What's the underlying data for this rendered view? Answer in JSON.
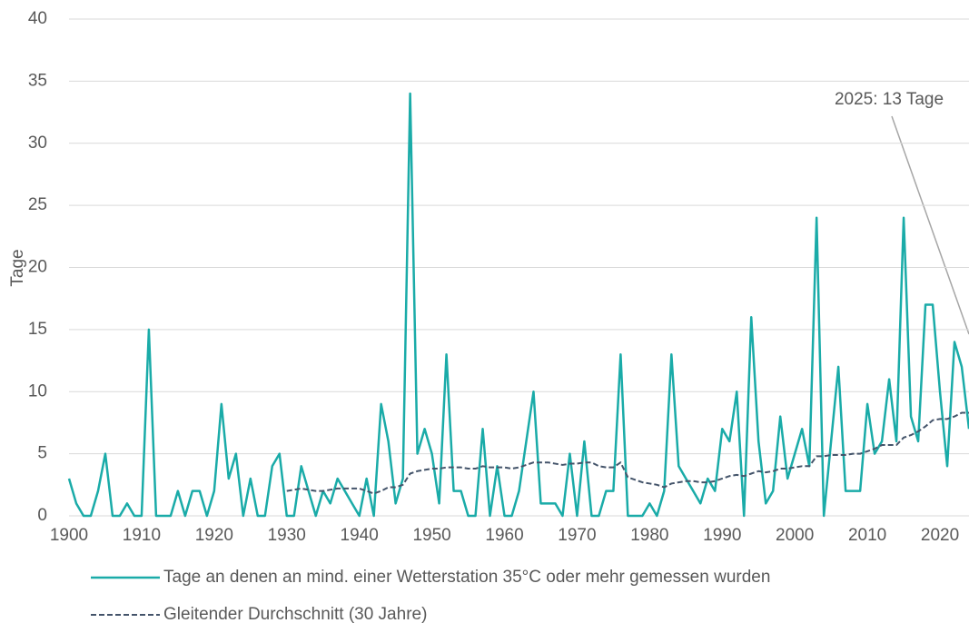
{
  "chart_data": {
    "type": "line",
    "y_label": "Tage",
    "annotation": "2025: 13 Tage",
    "x": [
      1900,
      1901,
      1902,
      1903,
      1904,
      1905,
      1906,
      1907,
      1908,
      1909,
      1910,
      1911,
      1912,
      1913,
      1914,
      1915,
      1916,
      1917,
      1918,
      1919,
      1920,
      1921,
      1922,
      1923,
      1924,
      1925,
      1926,
      1927,
      1928,
      1929,
      1930,
      1931,
      1932,
      1933,
      1934,
      1935,
      1936,
      1937,
      1938,
      1939,
      1940,
      1941,
      1942,
      1943,
      1944,
      1945,
      1946,
      1947,
      1948,
      1949,
      1950,
      1951,
      1952,
      1953,
      1954,
      1955,
      1956,
      1957,
      1958,
      1959,
      1960,
      1961,
      1962,
      1963,
      1964,
      1965,
      1966,
      1967,
      1968,
      1969,
      1970,
      1971,
      1972,
      1973,
      1974,
      1975,
      1976,
      1977,
      1978,
      1979,
      1980,
      1981,
      1982,
      1983,
      1984,
      1985,
      1986,
      1987,
      1988,
      1989,
      1990,
      1991,
      1992,
      1993,
      1994,
      1995,
      1996,
      1997,
      1998,
      1999,
      2000,
      2001,
      2002,
      2003,
      2004,
      2005,
      2006,
      2007,
      2008,
      2009,
      2010,
      2011,
      2012,
      2013,
      2014,
      2015,
      2016,
      2017,
      2018,
      2019,
      2020,
      2021,
      2022,
      2023,
      2024
    ],
    "series": [
      {
        "name": "Tage an denen an mind. einer Wetterstation 35°C oder mehr gemessen wurden",
        "color": "#1aaba8",
        "dash": false,
        "values": [
          3,
          1,
          0,
          0,
          2,
          5,
          0,
          0,
          1,
          0,
          0,
          15,
          0,
          0,
          0,
          2,
          0,
          2,
          2,
          0,
          2,
          9,
          3,
          5,
          0,
          3,
          0,
          0,
          4,
          5,
          0,
          0,
          4,
          2,
          0,
          2,
          1,
          3,
          2,
          1,
          0,
          3,
          0,
          9,
          6,
          1,
          3,
          34,
          5,
          7,
          5,
          1,
          13,
          2,
          2,
          0,
          0,
          7,
          0,
          4,
          0,
          0,
          2,
          6,
          10,
          1,
          1,
          1,
          0,
          5,
          0,
          6,
          0,
          0,
          2,
          2,
          13,
          0,
          0,
          0,
          1,
          0,
          2,
          13,
          4,
          3,
          2,
          1,
          3,
          2,
          7,
          6,
          10,
          0,
          16,
          6,
          1,
          2,
          8,
          3,
          5,
          7,
          4,
          24,
          0,
          6,
          12,
          2,
          2,
          2,
          9,
          5,
          6,
          11,
          6,
          24,
          8,
          6,
          17,
          17,
          10,
          4,
          14,
          12,
          7
        ]
      },
      {
        "name": "Gleitender Durchschnitt (30 Jahre)",
        "color": "#44546a",
        "dash": true,
        "values": [
          null,
          null,
          null,
          null,
          null,
          null,
          null,
          null,
          null,
          null,
          null,
          null,
          null,
          null,
          null,
          null,
          null,
          null,
          null,
          null,
          null,
          null,
          null,
          null,
          null,
          null,
          null,
          null,
          null,
          null,
          2.0,
          2.1,
          2.2,
          2.1,
          2.0,
          2.0,
          2.1,
          2.2,
          2.2,
          2.2,
          2.2,
          2.0,
          1.8,
          2.0,
          2.3,
          2.3,
          2.5,
          3.4,
          3.6,
          3.7,
          3.8,
          3.8,
          3.9,
          3.9,
          3.9,
          3.8,
          3.8,
          4.0,
          3.9,
          3.9,
          3.9,
          3.8,
          3.9,
          4.1,
          4.3,
          4.3,
          4.3,
          4.2,
          4.1,
          4.2,
          4.2,
          4.3,
          4.3,
          4.0,
          3.9,
          3.9,
          4.3,
          3.1,
          2.9,
          2.7,
          2.6,
          2.5,
          2.3,
          2.6,
          2.7,
          2.8,
          2.8,
          2.7,
          2.7,
          2.8,
          3.0,
          3.2,
          3.3,
          3.2,
          3.4,
          3.6,
          3.5,
          3.6,
          3.8,
          3.8,
          3.9,
          4.0,
          4.0,
          4.8,
          4.8,
          4.9,
          4.9,
          4.9,
          5.0,
          5.0,
          5.2,
          5.4,
          5.7,
          5.7,
          5.7,
          6.3,
          6.5,
          6.8,
          7.2,
          7.7,
          7.8,
          7.8,
          8.0,
          8.3,
          8.3
        ]
      }
    ],
    "xlim": [
      1900,
      2024
    ],
    "xticks": [
      1900,
      1910,
      1920,
      1930,
      1940,
      1950,
      1960,
      1970,
      1980,
      1990,
      2000,
      2010,
      2020
    ],
    "ylim": [
      0,
      40
    ],
    "yticks": [
      0,
      5,
      10,
      15,
      20,
      25,
      30,
      35,
      40
    ],
    "grid": true,
    "legend": "bottom"
  }
}
